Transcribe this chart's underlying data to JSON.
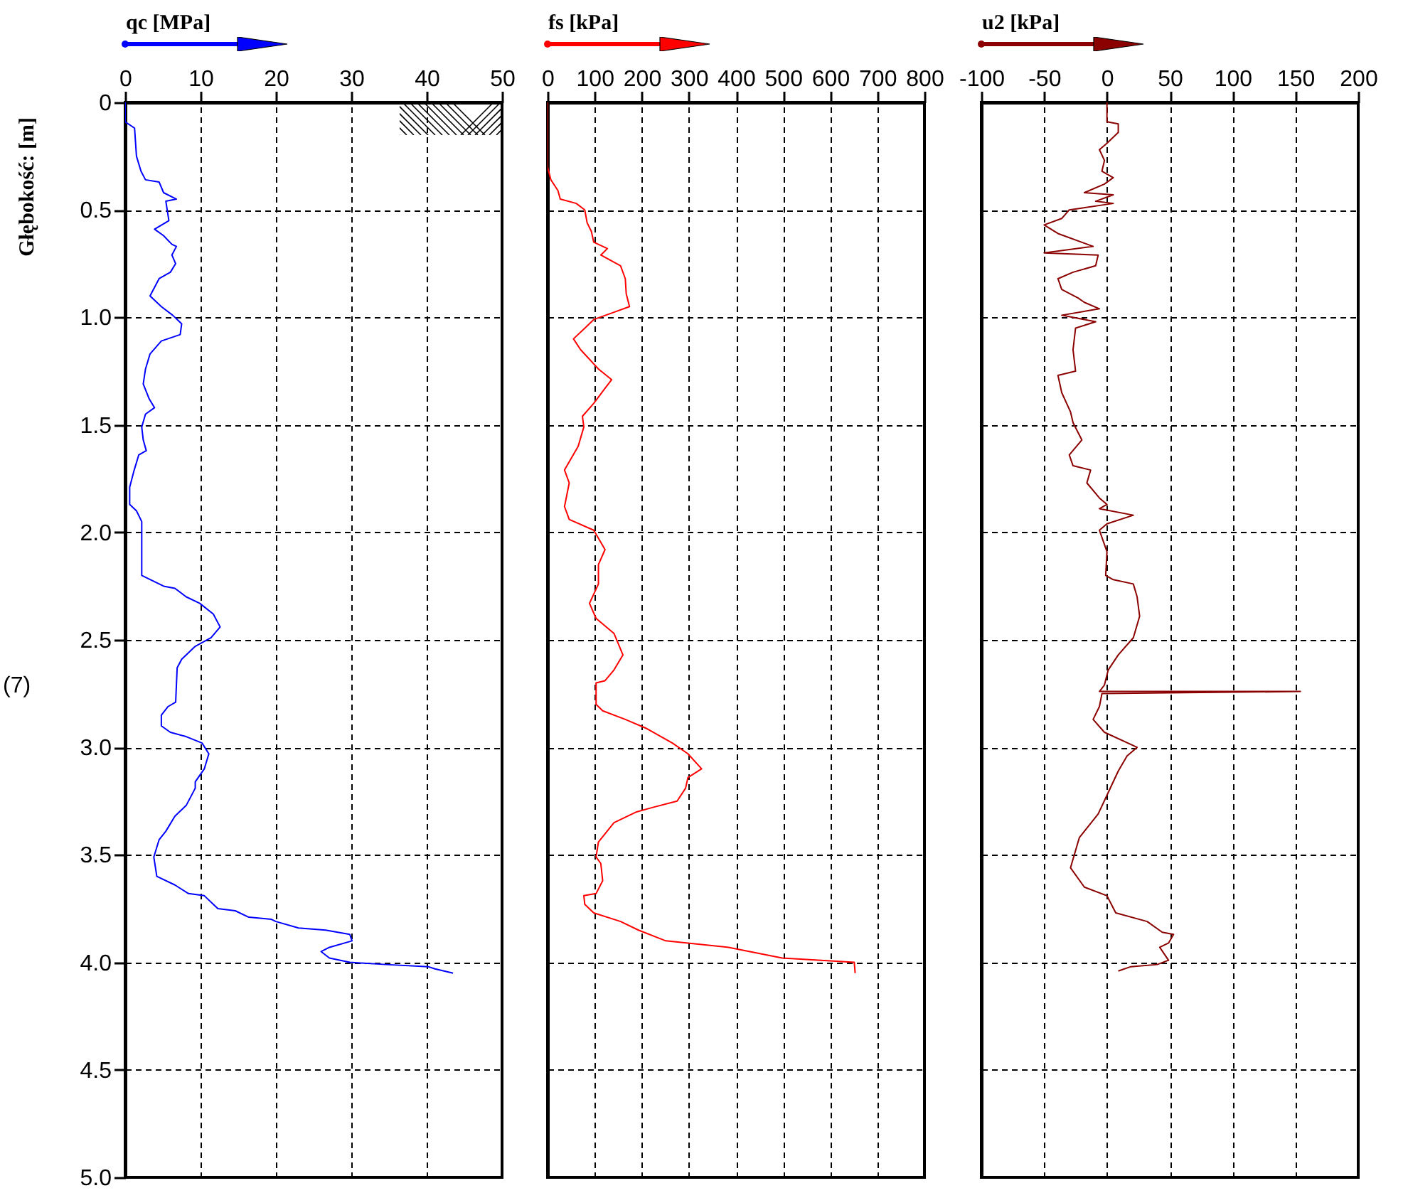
{
  "chart_data": [
    {
      "type": "line",
      "xlabel": "qc [MPa]",
      "ylabel": "Głębokość: [m]",
      "xlim": [
        0,
        50
      ],
      "xticks": [
        0,
        10,
        20,
        30,
        40,
        50
      ],
      "ylim": [
        5,
        0
      ],
      "yticks": [
        0,
        0.5,
        {
          "value": 1,
          "label": "1.0"
        },
        1.5,
        {
          "value": 2,
          "label": "2.0"
        },
        2.5,
        {
          "value": 3,
          "label": "3.0"
        },
        3.5,
        {
          "value": 4,
          "label": "4.0"
        },
        4.5,
        {
          "value": 5,
          "label": "5.0"
        }
      ],
      "grid": true,
      "annotations": [
        "(7)"
      ],
      "series": [
        {
          "color": "#0000ff",
          "x": [
            0,
            0,
            1.25,
            1.5,
            2.1,
            2.7,
            4.5,
            5.1,
            6.8,
            5.4,
            5.8,
            3.9,
            5.1,
            6.2,
            6.8,
            6.2,
            6.7,
            6.0,
            4.5,
            3.3,
            4.8,
            6.3,
            7.5,
            7.3,
            4.8,
            3.3,
            2.7,
            2.4,
            3.2,
            3.9,
            2.7,
            2.2,
            2.4,
            2.8,
            1.8,
            1.2,
            0.6,
            0.6,
            1.5,
            2.2,
            2.2,
            5.1,
            6.6,
            8.1,
            9.9,
            11.7,
            12.6,
            11.4,
            9.3,
            7.5,
            6.9,
            6.7,
            5.7,
            4.8,
            4.8,
            6.0,
            8.1,
            10.2,
            11.1,
            10.5,
            9.3,
            9.3,
            8.1,
            6.6,
            5.4,
            4.5,
            3.8,
            4.2,
            6.6,
            8.4,
            10.5,
            11.7,
            12.3,
            14.6,
            16.4,
            19.4,
            20.0,
            23.0,
            26.6,
            29.8,
            30.1,
            27.1,
            26.0,
            27.1,
            29.8,
            34.6,
            40.2,
            41.1,
            43.5
          ],
          "values": [
            0,
            0.09,
            0.12,
            0.25,
            0.32,
            0.36,
            0.37,
            0.42,
            0.45,
            0.46,
            0.55,
            0.59,
            0.62,
            0.66,
            0.67,
            0.71,
            0.75,
            0.79,
            0.82,
            0.9,
            0.95,
            0.99,
            1.03,
            1.08,
            1.11,
            1.17,
            1.24,
            1.31,
            1.38,
            1.42,
            1.45,
            1.51,
            1.57,
            1.62,
            1.64,
            1.71,
            1.79,
            1.87,
            1.9,
            1.95,
            2.2,
            2.25,
            2.26,
            2.3,
            2.33,
            2.38,
            2.44,
            2.49,
            2.53,
            2.59,
            2.63,
            2.79,
            2.81,
            2.85,
            2.9,
            2.93,
            2.95,
            2.98,
            3.03,
            3.1,
            3.16,
            3.19,
            3.27,
            3.32,
            3.39,
            3.43,
            3.51,
            3.6,
            3.64,
            3.68,
            3.69,
            3.73,
            3.75,
            3.76,
            3.79,
            3.8,
            3.81,
            3.84,
            3.85,
            3.87,
            3.9,
            3.93,
            3.95,
            3.98,
            4.0,
            4.01,
            4.02,
            4.03,
            4.05
          ]
        }
      ]
    },
    {
      "type": "line",
      "xlabel": "fs [kPa]",
      "xlim": [
        0,
        800
      ],
      "xticks": [
        0,
        100,
        200,
        300,
        400,
        500,
        600,
        700,
        800
      ],
      "ylim": [
        5,
        0
      ],
      "yticks": [
        {
          "value": 0,
          "label": null
        },
        {
          "value": 0.5,
          "label": null
        },
        {
          "value": 1,
          "label": null
        },
        {
          "value": 1.5,
          "label": null
        },
        {
          "value": 2,
          "label": null
        },
        {
          "value": 2.5,
          "label": null
        },
        {
          "value": 3,
          "label": null
        },
        {
          "value": 3.5,
          "label": null
        },
        {
          "value": 4,
          "label": null
        },
        {
          "value": 4.5,
          "label": null
        },
        {
          "value": 5,
          "label": null
        }
      ],
      "grid": true,
      "tick_labels": "x",
      "series": [
        {
          "color": "#ff0000",
          "x": [
            0,
            0,
            7,
            22,
            27,
            61,
            79,
            84,
            93,
            98,
            127,
            113,
            155,
            165,
            167,
            174,
            136,
            98,
            84,
            55,
            70,
            108,
            136,
            122,
            98,
            74,
            77,
            65,
            36,
            46,
            36,
            46,
            98,
            122,
            108,
            108,
            108,
            89,
            103,
            141,
            160,
            141,
            122,
            103,
            103,
            117,
            165,
            208,
            265,
            298,
            327,
            298,
            293,
            275,
            222,
            189,
            141,
            108,
            103,
            113,
            117,
            103,
            77,
            79,
            98,
            155,
            193,
            251,
            384,
            498,
            651,
            653
          ],
          "values": [
            0,
            0.3,
            0.36,
            0.41,
            0.45,
            0.47,
            0.5,
            0.56,
            0.6,
            0.65,
            0.68,
            0.71,
            0.76,
            0.82,
            0.89,
            0.95,
            0.98,
            1.01,
            1.04,
            1.1,
            1.15,
            1.24,
            1.29,
            1.33,
            1.4,
            1.46,
            1.51,
            1.6,
            1.71,
            1.77,
            1.88,
            1.94,
            1.99,
            2.08,
            2.15,
            2.22,
            2.24,
            2.33,
            2.4,
            2.47,
            2.57,
            2.64,
            2.69,
            2.7,
            2.8,
            2.83,
            2.87,
            2.91,
            2.98,
            3.03,
            3.1,
            3.14,
            3.19,
            3.25,
            3.28,
            3.3,
            3.35,
            3.44,
            3.51,
            3.54,
            3.62,
            3.68,
            3.69,
            3.73,
            3.77,
            3.81,
            3.85,
            3.9,
            3.93,
            3.98,
            4.0,
            4.05
          ]
        }
      ]
    },
    {
      "type": "line",
      "xlabel": "u2 [kPa]",
      "xlim": [
        -100,
        200
      ],
      "xticks": [
        -100,
        -50,
        0,
        50,
        100,
        150,
        200
      ],
      "ylim": [
        5,
        0
      ],
      "yticks": [
        {
          "value": 0,
          "label": null
        },
        {
          "value": 0.5,
          "label": null
        },
        {
          "value": 1,
          "label": null
        },
        {
          "value": 1.5,
          "label": null
        },
        {
          "value": 2,
          "label": null
        },
        {
          "value": 2.5,
          "label": null
        },
        {
          "value": 3,
          "label": null
        },
        {
          "value": 3.5,
          "label": null
        },
        {
          "value": 4,
          "label": null
        },
        {
          "value": 4.5,
          "label": null
        },
        {
          "value": 5,
          "label": null
        }
      ],
      "grid": true,
      "tick_labels": "x",
      "series": [
        {
          "color": "#8b0000",
          "x": [
            0,
            0,
            9,
            9,
            0,
            -6,
            -2,
            -4,
            5,
            -2,
            -18,
            5,
            -9,
            5,
            -30,
            -36,
            -50,
            -39,
            -11,
            -50,
            -7,
            -9,
            -27,
            -39,
            -36,
            -23,
            -18,
            -6,
            -36,
            -9,
            -25,
            -27,
            -25,
            -39,
            -36,
            -29,
            -27,
            -20,
            -30,
            -27,
            -13,
            -16,
            -6,
            0,
            -6,
            21,
            0,
            -6,
            0,
            -1,
            5,
            21,
            24,
            26,
            21,
            9,
            1,
            -2,
            -6,
            154,
            -4,
            -6,
            -11,
            -2,
            24,
            16,
            9,
            1,
            -7,
            -22,
            -29,
            -18,
            0,
            7,
            32,
            44,
            53,
            49,
            42,
            49,
            40,
            19,
            9
          ],
          "values": [
            0,
            0.09,
            0.1,
            0.14,
            0.19,
            0.22,
            0.27,
            0.32,
            0.35,
            0.38,
            0.42,
            0.43,
            0.46,
            0.47,
            0.5,
            0.54,
            0.57,
            0.61,
            0.67,
            0.7,
            0.71,
            0.76,
            0.79,
            0.82,
            0.87,
            0.91,
            0.93,
            0.96,
            0.99,
            1.02,
            1.05,
            1.15,
            1.25,
            1.27,
            1.35,
            1.44,
            1.49,
            1.57,
            1.64,
            1.69,
            1.71,
            1.77,
            1.84,
            1.87,
            1.89,
            1.92,
            1.96,
            1.99,
            2.09,
            2.2,
            2.22,
            2.24,
            2.3,
            2.39,
            2.49,
            2.57,
            2.64,
            2.71,
            2.74,
            2.74,
            2.75,
            2.81,
            2.87,
            2.93,
            3.0,
            3.04,
            3.11,
            3.21,
            3.31,
            3.42,
            3.56,
            3.65,
            3.69,
            3.77,
            3.81,
            3.86,
            3.87,
            3.91,
            3.93,
            3.99,
            4.01,
            4.02,
            4.04
          ]
        }
      ]
    }
  ]
}
